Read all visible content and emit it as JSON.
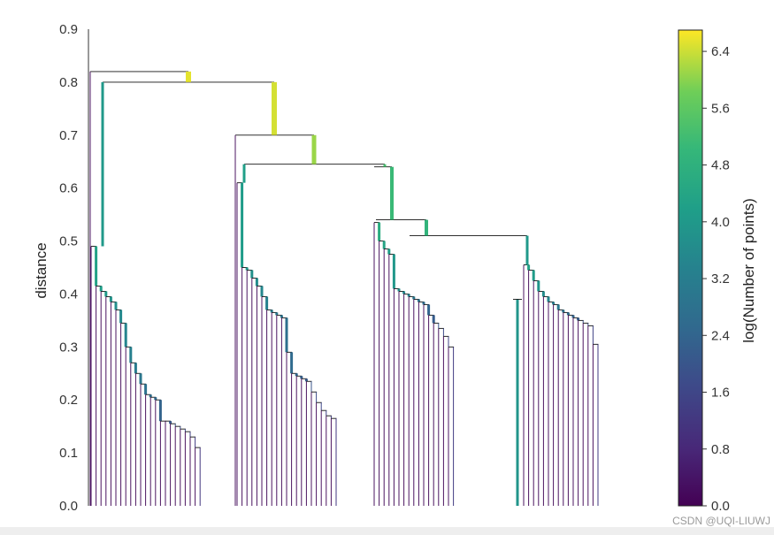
{
  "chart_data": {
    "type": "dendrogram",
    "ylabel": "distance",
    "ylim": [
      0,
      0.9
    ],
    "yticks": [
      "0.0",
      "0.1",
      "0.2",
      "0.3",
      "0.4",
      "0.5",
      "0.6",
      "0.7",
      "0.8",
      "0.9"
    ],
    "colorbar": {
      "label": "log(Number of points)",
      "colormap": "viridis",
      "range": [
        0,
        6.7
      ],
      "ticks": [
        "0.0",
        "0.8",
        "1.6",
        "2.4",
        "3.2",
        "4.0",
        "4.8",
        "5.6",
        "6.4"
      ]
    },
    "merges": [
      {
        "height": 0.82,
        "logn": 6.55
      },
      {
        "height": 0.8,
        "logn": 6.45
      },
      {
        "height": 0.7,
        "logn": 6.1
      },
      {
        "height": 0.645,
        "logn": 5.3
      },
      {
        "height": 0.64,
        "logn": 5.1
      },
      {
        "height": 0.54,
        "logn": 5.0
      },
      {
        "height": 0.51,
        "logn": 4.9
      },
      {
        "height": 0.49,
        "logn": 4.3
      },
      {
        "height": 0.48,
        "logn": 4.5
      },
      {
        "height": 0.45,
        "logn": 4.0
      },
      {
        "height": 0.42,
        "logn": 4.0
      }
    ]
  },
  "watermark": "CSDN @UQI-LIUWJ"
}
